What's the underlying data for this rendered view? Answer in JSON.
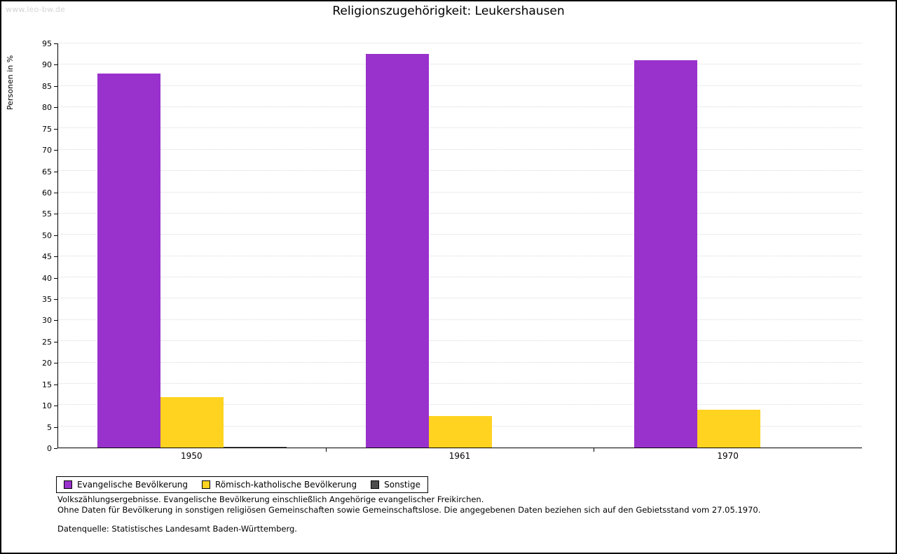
{
  "watermark": "www.leo-bw.de",
  "chart_data": {
    "type": "bar",
    "title": "Religionszugehörigkeit: Leukershausen",
    "xlabel": "",
    "ylabel": "Personen in %",
    "categories": [
      "1950",
      "1961",
      "1970"
    ],
    "series": [
      {
        "name": "Evangelische Bevölkerung",
        "color": "#9932cc",
        "values": [
          87.9,
          92.6,
          91.1
        ]
      },
      {
        "name": "Römisch-katholische Bevölkerung",
        "color": "#ffd320",
        "values": [
          11.9,
          7.4,
          8.9
        ]
      },
      {
        "name": "Sonstige",
        "color": "#4d4d4d",
        "values": [
          0.2,
          0,
          0
        ]
      }
    ],
    "ylim": [
      0,
      95
    ],
    "ytick_step": 5,
    "grid": true,
    "legend_position": "bottom-left"
  },
  "footnotes": [
    "Volkszählungsergebnisse. Evangelische Bevölkerung einschließlich Angehörige evangelischer Freikirchen.",
    "Ohne Daten für Bevölkerung in sonstigen religiösen Gemeinschaften sowie Gemeinschaftslose. Die angegebenen Daten beziehen sich auf den Gebietsstand vom 27.05.1970.",
    "Datenquelle: Statistisches Landesamt Baden-Württemberg."
  ]
}
